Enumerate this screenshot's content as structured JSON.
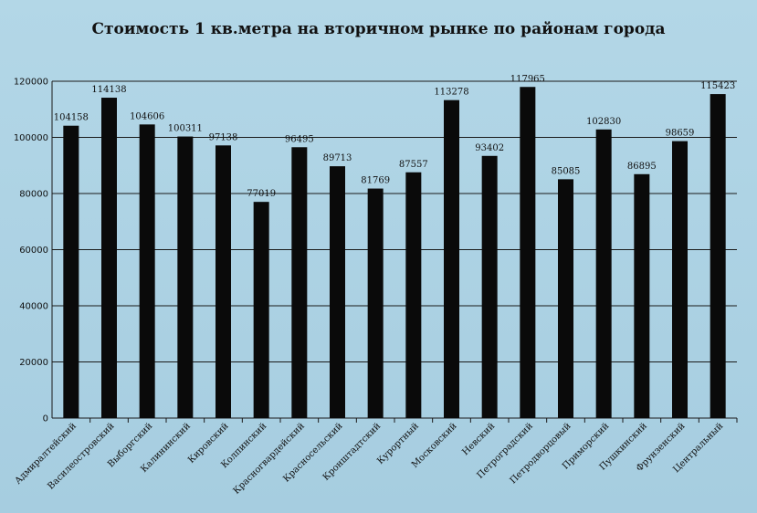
{
  "chart_data": {
    "type": "bar",
    "title": "Стоимость 1 кв.метра на вторичном  рынке по районам  города",
    "xlabel": "",
    "ylabel": "",
    "ylim": [
      0,
      120000
    ],
    "yticks": [
      0,
      20000,
      40000,
      60000,
      80000,
      100000,
      120000
    ],
    "grid": true,
    "legend": "none",
    "bar_color": "#0a0a0a",
    "categories": [
      "Адмиралтейский",
      "Василеостровский",
      "Выборгский",
      "Калининский",
      "Кировский",
      "Колпинский",
      "Красногвардейский",
      "Красносельский",
      "Кронштадтский",
      "Курортный",
      "Московский",
      "Невский",
      "Петроградский",
      "Петродворцовый",
      "Приморский",
      "Пушкинский",
      "Фрунзенский",
      "Центральный"
    ],
    "values": [
      104158,
      114138,
      104606,
      100311,
      97138,
      77019,
      96495,
      89713,
      81769,
      87557,
      113278,
      93402,
      117965,
      85085,
      102830,
      86895,
      98659,
      115423
    ]
  }
}
